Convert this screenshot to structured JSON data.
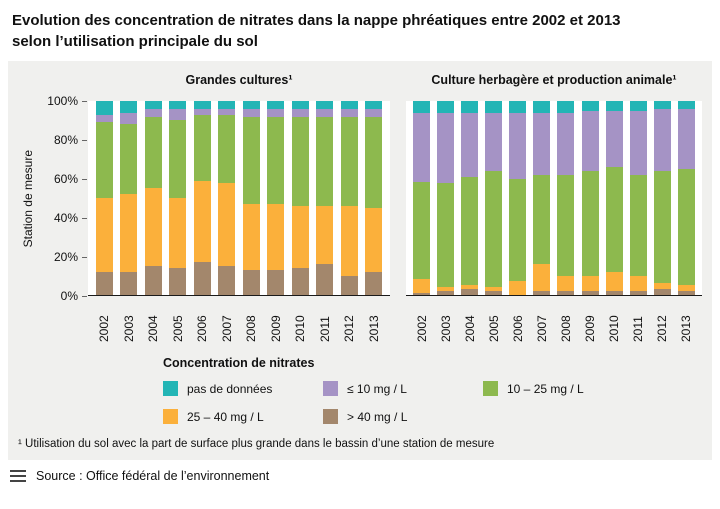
{
  "title": "Evolution des concentration de nitrates dans la nappe phréatiques entre 2002 et 2013 selon l’utilisation principale du sol",
  "y_axis_label": "Station de mesure",
  "y_ticks": [
    "0%",
    "20%",
    "40%",
    "60%",
    "80%",
    "100%"
  ],
  "legend": {
    "title": "Concentration de nitrates",
    "items": [
      {
        "label": "pas de données",
        "color": "#23b5b5"
      },
      {
        "label": "≤ 10 mg / L",
        "color": "#a593c5"
      },
      {
        "label": "10 – 25 mg / L",
        "color": "#8db94e"
      },
      {
        "label": "25 – 40 mg / L",
        "color": "#fbb03b"
      },
      {
        "label": "> 40 mg / L",
        "color": "#a3876c"
      }
    ]
  },
  "footnote": "¹ Utilisation du sol avec la part de surface plus grande dans le bassin d’une station de mesure",
  "source": "Source : Office fédéral de l’environnement",
  "chart_data": [
    {
      "type": "bar",
      "stacked": true,
      "title": "Grandes cultures¹",
      "xlabel": "",
      "ylabel": "Station de mesure",
      "ylim": [
        0,
        100
      ],
      "grid": false,
      "legend_position": "bottom",
      "categories": [
        "2002",
        "2003",
        "2004",
        "2005",
        "2006",
        "2007",
        "2008",
        "2009",
        "2010",
        "2011",
        "2012",
        "2013"
      ],
      "series": [
        {
          "name": "> 40 mg / L",
          "color": "#a3876c",
          "values": [
            12,
            12,
            15,
            14,
            17,
            15,
            13,
            13,
            14,
            16,
            10,
            12
          ]
        },
        {
          "name": "25 – 40 mg / L",
          "color": "#fbb03b",
          "values": [
            38,
            40,
            40,
            36,
            42,
            43,
            34,
            34,
            32,
            30,
            36,
            33
          ]
        },
        {
          "name": "10 – 25 mg / L",
          "color": "#8db94e",
          "values": [
            39,
            36,
            37,
            40,
            34,
            35,
            45,
            45,
            46,
            46,
            46,
            47
          ]
        },
        {
          "name": "≤ 10 mg / L",
          "color": "#a593c5",
          "values": [
            4,
            6,
            4,
            6,
            3,
            3,
            4,
            4,
            4,
            4,
            4,
            4
          ]
        },
        {
          "name": "pas de données",
          "color": "#23b5b5",
          "values": [
            7,
            6,
            4,
            4,
            4,
            4,
            4,
            4,
            4,
            4,
            4,
            4
          ]
        }
      ]
    },
    {
      "type": "bar",
      "stacked": true,
      "title": "Culture herbagère et production animale¹",
      "xlabel": "",
      "ylabel": "Station de mesure",
      "ylim": [
        0,
        100
      ],
      "grid": false,
      "legend_position": "bottom",
      "categories": [
        "2002",
        "2003",
        "2004",
        "2005",
        "2006",
        "2007",
        "2008",
        "2009",
        "2010",
        "2011",
        "2012",
        "2013"
      ],
      "series": [
        {
          "name": "> 40 mg / L",
          "color": "#a3876c",
          "values": [
            1,
            2,
            3,
            2,
            0,
            2,
            2,
            2,
            2,
            2,
            3,
            2
          ]
        },
        {
          "name": "25 – 40 mg / L",
          "color": "#fbb03b",
          "values": [
            7,
            2,
            2,
            2,
            7,
            14,
            8,
            8,
            10,
            8,
            3,
            3
          ]
        },
        {
          "name": "10 – 25 mg / L",
          "color": "#8db94e",
          "values": [
            50,
            54,
            56,
            60,
            53,
            46,
            52,
            54,
            54,
            52,
            58,
            60
          ]
        },
        {
          "name": "≤ 10 mg / L",
          "color": "#a593c5",
          "values": [
            36,
            36,
            33,
            30,
            34,
            32,
            32,
            31,
            29,
            33,
            32,
            31
          ]
        },
        {
          "name": "pas de données",
          "color": "#23b5b5",
          "values": [
            6,
            6,
            6,
            6,
            6,
            6,
            6,
            5,
            5,
            5,
            4,
            4
          ]
        }
      ]
    }
  ]
}
